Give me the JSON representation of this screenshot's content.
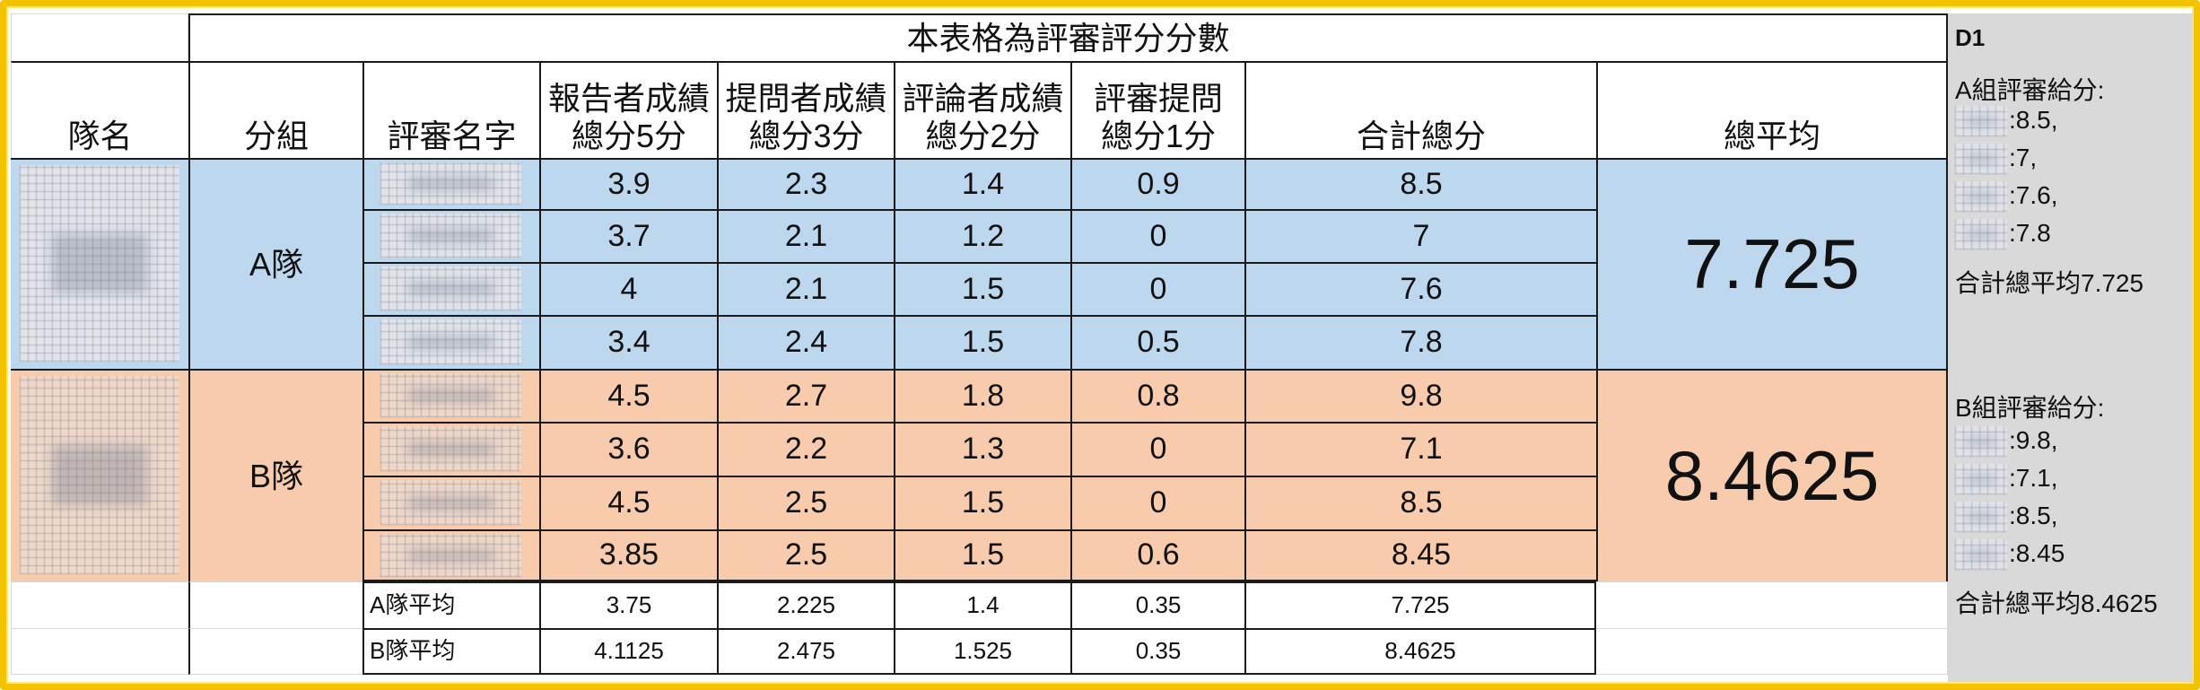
{
  "table": {
    "title": "本表格為評審評分分數",
    "headers": {
      "team_name": "隊名",
      "group": "分組",
      "judge_name": "評審名字",
      "reporter": "報告者成績\n總分5分",
      "questioner": "提問者成績\n總分3分",
      "commenter": "評論者成績\n總分2分",
      "judge_question": "評審提問\n總分1分",
      "total": "合計總分",
      "average": "總平均"
    },
    "groups": [
      {
        "label": "A隊",
        "average": "7.725",
        "rows": [
          {
            "reporter": "3.9",
            "questioner": "2.3",
            "commenter": "1.4",
            "judge_question": "0.9",
            "total": "8.5"
          },
          {
            "reporter": "3.7",
            "questioner": "2.1",
            "commenter": "1.2",
            "judge_question": "0",
            "total": "7"
          },
          {
            "reporter": "4",
            "questioner": "2.1",
            "commenter": "1.5",
            "judge_question": "0",
            "total": "7.6"
          },
          {
            "reporter": "3.4",
            "questioner": "2.4",
            "commenter": "1.5",
            "judge_question": "0.5",
            "total": "7.8"
          }
        ]
      },
      {
        "label": "B隊",
        "average": "8.4625",
        "rows": [
          {
            "reporter": "4.5",
            "questioner": "2.7",
            "commenter": "1.8",
            "judge_question": "0.8",
            "total": "9.8"
          },
          {
            "reporter": "3.6",
            "questioner": "2.2",
            "commenter": "1.3",
            "judge_question": "0",
            "total": "7.1"
          },
          {
            "reporter": "4.5",
            "questioner": "2.5",
            "commenter": "1.5",
            "judge_question": "0",
            "total": "8.5"
          },
          {
            "reporter": "3.85",
            "questioner": "2.5",
            "commenter": "1.5",
            "judge_question": "0.6",
            "total": "8.45"
          }
        ]
      }
    ],
    "averages": [
      {
        "label": "A隊平均",
        "reporter": "3.75",
        "questioner": "2.225",
        "commenter": "1.4",
        "judge_question": "0.35",
        "total": "7.725"
      },
      {
        "label": "B隊平均",
        "reporter": "4.1125",
        "questioner": "2.475",
        "commenter": "1.525",
        "judge_question": "0.35",
        "total": "8.4625"
      }
    ]
  },
  "comment": {
    "cell_ref": "D1",
    "a_title": "A組評審給分:",
    "a_scores": [
      ":8.5,",
      ":7,",
      ":7.6,",
      ":7.8"
    ],
    "a_total": "合計總平均7.725",
    "b_title": "B組評審給分:",
    "b_scores": [
      ":9.8,",
      ":7.1,",
      ":8.5,",
      ":8.45"
    ],
    "b_total": "合計總平均8.4625"
  },
  "colors": {
    "group_a_fill": "#bdd7ee",
    "group_b_fill": "#f8cbad",
    "frame": "#f3c300",
    "comment_bg": "#d9d9d9"
  }
}
